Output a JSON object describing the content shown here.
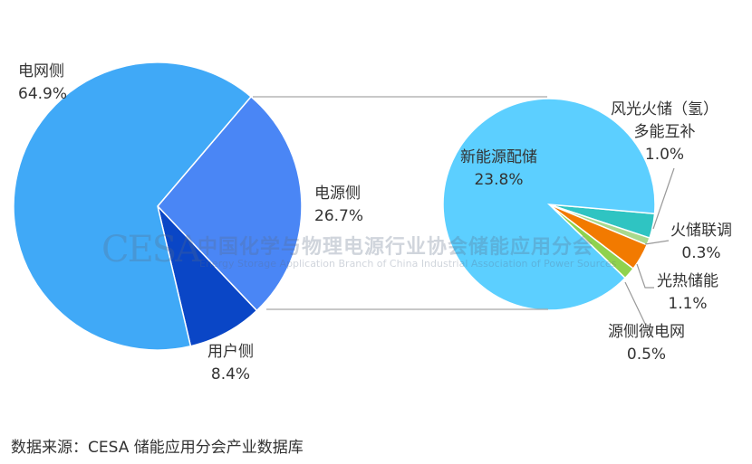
{
  "chart_data": [
    {
      "type": "pie",
      "categories": [
        "电源侧",
        "用户侧",
        "电网侧"
      ],
      "values": [
        26.7,
        8.4,
        64.9
      ],
      "labels": [
        "26.7%",
        "8.4%",
        "64.9%"
      ],
      "colors": [
        "#4a86f5",
        "#0a46c6",
        "#40a9f7"
      ]
    },
    {
      "type": "pie",
      "categories": [
        "风光火储（氢）多能互补",
        "火储联调",
        "光热储能",
        "源侧微电网",
        "新能源配储"
      ],
      "values": [
        1.0,
        0.3,
        1.1,
        0.5,
        23.8
      ],
      "labels": [
        "1.0%",
        "0.3%",
        "1.1%",
        "0.5%",
        "23.8%"
      ],
      "colors": [
        "#2fc4c2",
        "#a9d98d",
        "#f27a00",
        "#8fd24e",
        "#5ccfff"
      ]
    }
  ],
  "text": {
    "grid_side": "电网侧",
    "grid_pct": "64.9%",
    "source_side": "电源侧",
    "source_pct": "26.7%",
    "user_side": "用户侧",
    "user_pct": "8.4%",
    "renew": "新能源配储",
    "renew_pct": "23.8%",
    "multi_l1": "风光火储（氢）",
    "multi_l2": "多能互补",
    "multi_pct": "1.0%",
    "thermal": "火储联调",
    "thermal_pct": "0.3%",
    "csp": "光热储能",
    "csp_pct": "1.1%",
    "micro": "源侧微电网",
    "micro_pct": "0.5%",
    "data_source": "数据来源：CESA 储能应用分会产业数据库"
  },
  "watermark": {
    "logo": "CESA",
    "cn": "中国化学与物理电源行业协会储能应用分会",
    "en": "Energy Storage Application Branch of China Industrial Association of Power Sources"
  }
}
